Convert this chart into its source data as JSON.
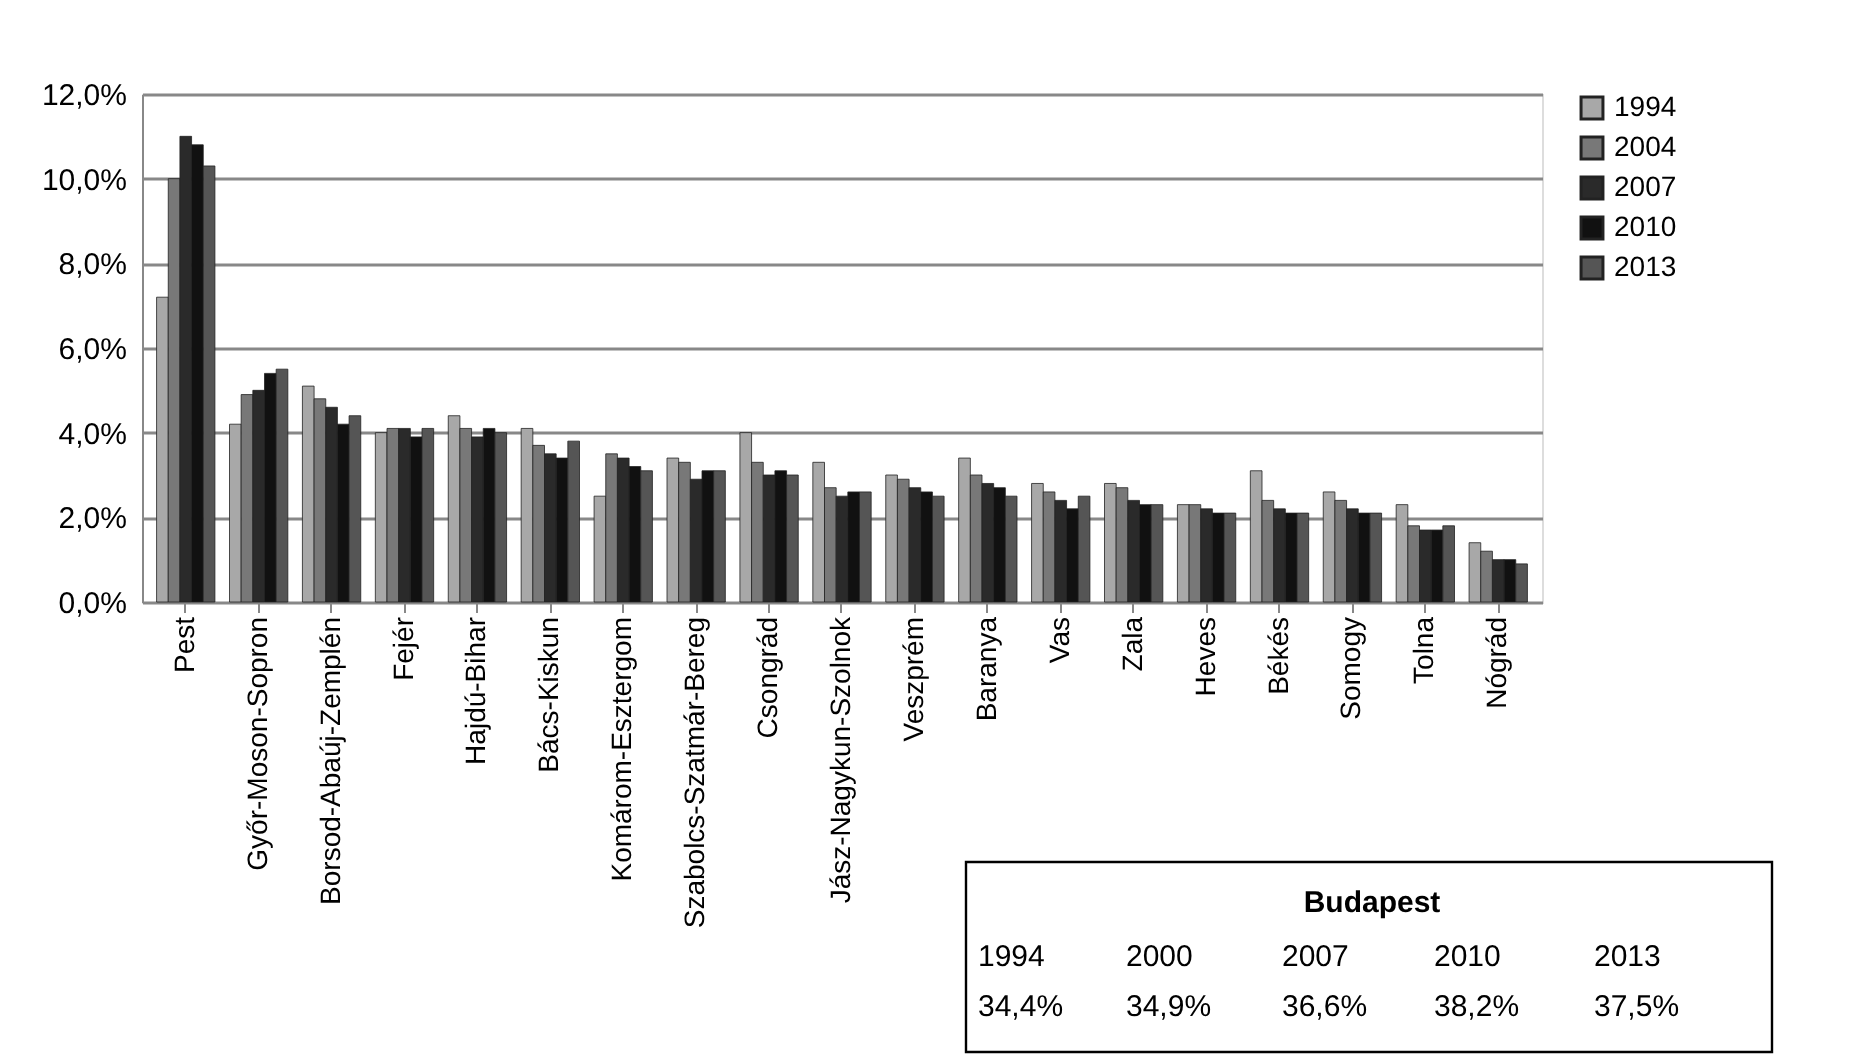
{
  "chart_data": {
    "type": "bar",
    "categories": [
      "Pest",
      "Győr-Moson-Sopron",
      "Borsod-Abaúj-Zemplén",
      "Fejér",
      "Hajdú-Bihar",
      "Bács-Kiskun",
      "Komárom-Esztergom",
      "Szabolcs-Szatmár-Bereg",
      "Csongrád",
      "Jász-Nagykun-Szolnok",
      "Veszprém",
      "Baranya",
      "Vas",
      "Zala",
      "Heves",
      "Békés",
      "Somogy",
      "Tolna",
      "Nógrád"
    ],
    "series": [
      {
        "name": "1994",
        "color": "#a8a8a8",
        "values": [
          7.2,
          4.2,
          5.1,
          4.0,
          4.4,
          4.1,
          2.5,
          3.4,
          4.0,
          3.3,
          3.0,
          3.4,
          2.8,
          2.8,
          2.3,
          3.1,
          2.6,
          2.3,
          1.4
        ]
      },
      {
        "name": "2004",
        "color": "#787878",
        "values": [
          10.0,
          4.9,
          4.8,
          4.1,
          4.1,
          3.7,
          3.5,
          3.3,
          3.3,
          2.7,
          2.9,
          3.0,
          2.6,
          2.7,
          2.3,
          2.4,
          2.4,
          1.8,
          1.2
        ]
      },
      {
        "name": "2007",
        "color": "#2a2a2a",
        "values": [
          11.0,
          5.0,
          4.6,
          4.1,
          3.9,
          3.5,
          3.4,
          2.9,
          3.0,
          2.5,
          2.7,
          2.8,
          2.4,
          2.4,
          2.2,
          2.2,
          2.2,
          1.7,
          1.0
        ]
      },
      {
        "name": "2010",
        "color": "#111111",
        "values": [
          10.8,
          5.4,
          4.2,
          3.9,
          4.1,
          3.4,
          3.2,
          3.1,
          3.1,
          2.6,
          2.6,
          2.7,
          2.2,
          2.3,
          2.1,
          2.1,
          2.1,
          1.7,
          1.0
        ]
      },
      {
        "name": "2013",
        "color": "#555555",
        "values": [
          10.3,
          5.5,
          4.4,
          4.1,
          4.0,
          3.8,
          3.1,
          3.1,
          3.0,
          2.6,
          2.5,
          2.5,
          2.5,
          2.3,
          2.1,
          2.1,
          2.1,
          1.8,
          0.9
        ]
      }
    ],
    "ylim": [
      0,
      12
    ],
    "yticks": [
      {
        "value": 0,
        "label": "0,0%"
      },
      {
        "value": 2,
        "label": "2,0%"
      },
      {
        "value": 4,
        "label": "4,0%"
      },
      {
        "value": 6,
        "label": "6,0%"
      },
      {
        "value": 8,
        "label": "8,0%"
      },
      {
        "value": 10,
        "label": "10,0%"
      },
      {
        "value": 12,
        "label": "12,0%"
      }
    ],
    "grid": "y",
    "legend": "right",
    "annotations": [
      "Budapest",
      "1994",
      "2000",
      "2007",
      "2010",
      "2013",
      "34,4%",
      "34,9%",
      "36,6%",
      "38,2%",
      "37,5%"
    ]
  }
}
